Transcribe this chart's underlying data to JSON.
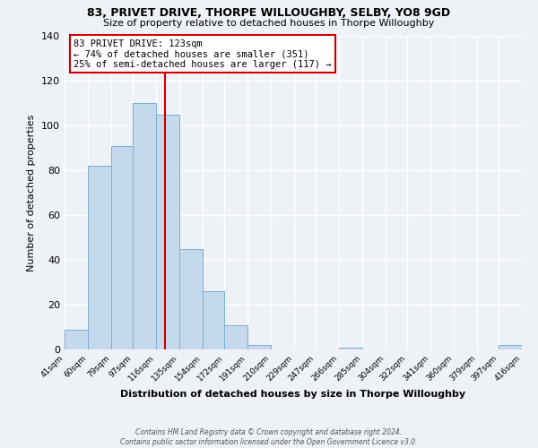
{
  "title": "83, PRIVET DRIVE, THORPE WILLOUGHBY, SELBY, YO8 9GD",
  "subtitle": "Size of property relative to detached houses in Thorpe Willoughby",
  "xlabel": "Distribution of detached houses by size in Thorpe Willoughby",
  "ylabel": "Number of detached properties",
  "bar_color": "#c5d9ed",
  "bar_edge_color": "#7aafd4",
  "background_color": "#eef2f7",
  "grid_color": "#ffffff",
  "vline_x": 123,
  "vline_color": "#cc0000",
  "annotation_line1": "83 PRIVET DRIVE: 123sqm",
  "annotation_line2": "← 74% of detached houses are smaller (351)",
  "annotation_line3": "25% of semi-detached houses are larger (117) →",
  "annotation_box_color": "#cc0000",
  "footer_line1": "Contains HM Land Registry data © Crown copyright and database right 2024.",
  "footer_line2": "Contains public sector information licensed under the Open Government Licence v3.0.",
  "bin_edges": [
    41,
    60,
    79,
    97,
    116,
    135,
    154,
    172,
    191,
    210,
    229,
    247,
    266,
    285,
    304,
    322,
    341,
    360,
    379,
    397,
    416
  ],
  "bin_counts": [
    9,
    82,
    91,
    110,
    105,
    45,
    26,
    11,
    2,
    0,
    0,
    0,
    1,
    0,
    0,
    0,
    0,
    0,
    0,
    2
  ],
  "ylim": [
    0,
    140
  ],
  "yticks": [
    0,
    20,
    40,
    60,
    80,
    100,
    120,
    140
  ]
}
